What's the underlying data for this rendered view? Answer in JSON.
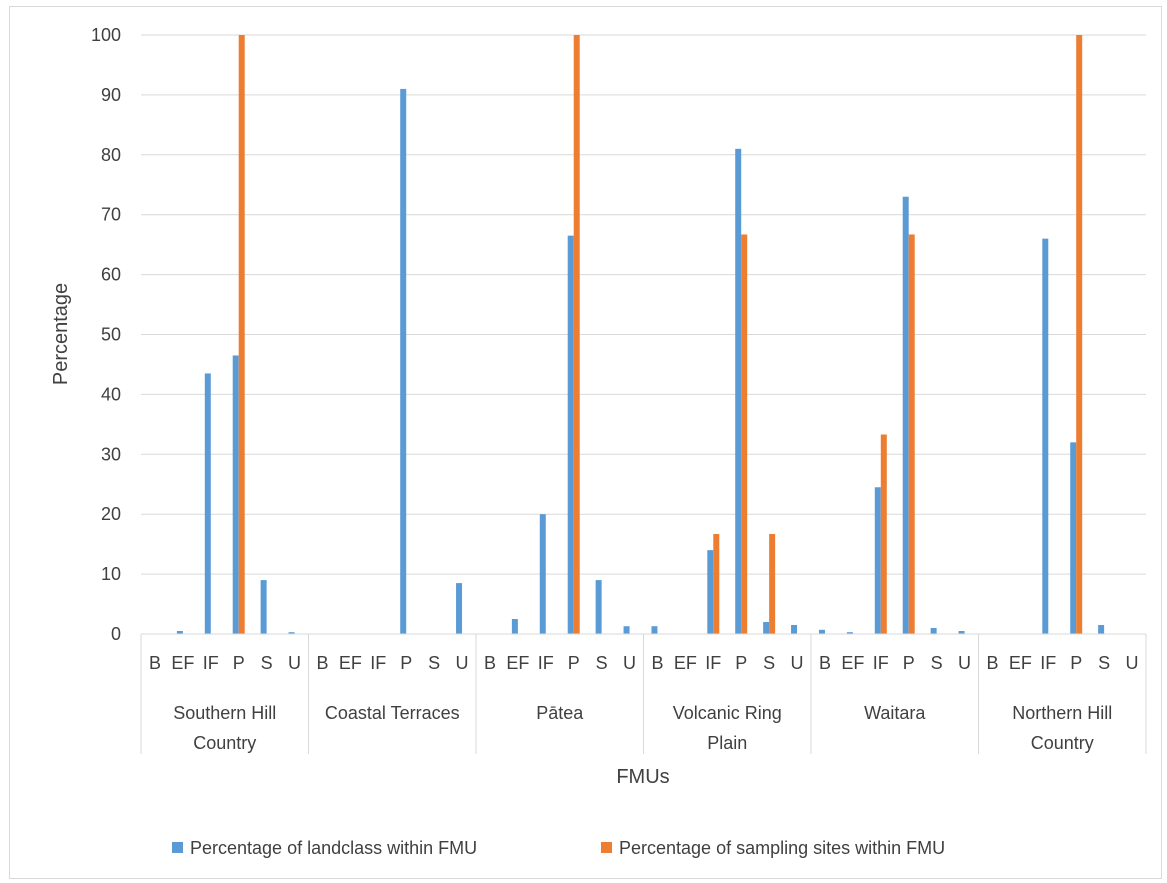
{
  "chart_data": {
    "type": "bar",
    "xlabel": "FMUs",
    "ylabel": "Percentage",
    "ylim": [
      0,
      100
    ],
    "yticks": [
      0,
      10,
      20,
      30,
      40,
      50,
      60,
      70,
      80,
      90,
      100
    ],
    "grid": true,
    "legend_position": "bottom",
    "groups": [
      {
        "name": "Southern Hill Country",
        "label_lines": [
          "Southern Hill",
          "Country"
        ]
      },
      {
        "name": "Coastal Terraces",
        "label_lines": [
          "Coastal Terraces"
        ]
      },
      {
        "name": "Pātea",
        "label_lines": [
          "Pātea"
        ]
      },
      {
        "name": "Volcanic Ring Plain",
        "label_lines": [
          "Volcanic Ring",
          "Plain"
        ]
      },
      {
        "name": "Waitara",
        "label_lines": [
          "Waitara"
        ]
      },
      {
        "name": "Northern Hill Country",
        "label_lines": [
          "Northern Hill",
          "Country"
        ]
      }
    ],
    "subcategories": [
      "B",
      "EF",
      "IF",
      "P",
      "S",
      "U"
    ],
    "series": [
      {
        "name": "Percentage of landclass within FMU",
        "color": "#5b9bd5",
        "values": [
          [
            0,
            0.5,
            43.5,
            46.5,
            9,
            0.3
          ],
          [
            0,
            0,
            0,
            91,
            0,
            8.5
          ],
          [
            0,
            2.5,
            20,
            66.5,
            9,
            1.3
          ],
          [
            1.3,
            0,
            14,
            81,
            2,
            1.5
          ],
          [
            0.7,
            0.3,
            24.5,
            73,
            1,
            0.5
          ],
          [
            0,
            0,
            66,
            32,
            1.5,
            0
          ]
        ]
      },
      {
        "name": "Percentage of  sampling sites within FMU",
        "color": "#ed7d31",
        "values": [
          [
            0,
            0,
            0,
            100,
            0,
            0
          ],
          [
            0,
            0,
            0,
            0,
            0,
            0
          ],
          [
            0,
            0,
            0,
            100,
            0,
            0
          ],
          [
            0,
            0,
            16.7,
            66.7,
            16.7,
            0
          ],
          [
            0,
            0,
            33.3,
            66.7,
            0,
            0
          ],
          [
            0,
            0,
            0,
            100,
            0,
            0
          ]
        ]
      }
    ]
  }
}
